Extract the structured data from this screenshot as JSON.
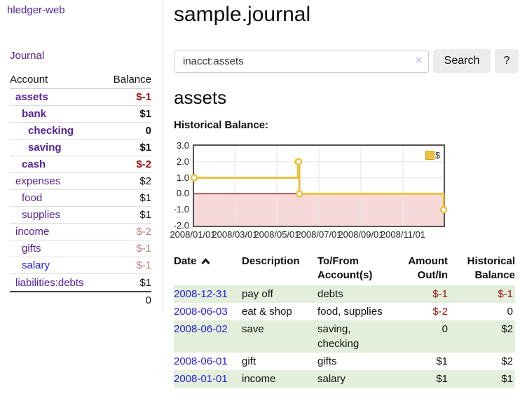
{
  "colors": {
    "purple": "#552299",
    "blue": "#2323dd",
    "darkred": "#971212",
    "rose": "#bd7b7b",
    "rowgreen": "#e3efda",
    "gold": "#edc240",
    "goldborder": "#c9a227",
    "pink": "#f8d9d9",
    "zeroline": "#9d1010",
    "chartborder": "#545454",
    "grid": "#e6e6e6",
    "btnbg": "#ececec"
  },
  "sidebar": {
    "app_title": "hledger-web",
    "nav": {
      "journal": "Journal"
    },
    "accounts_table": {
      "headers": {
        "account": "Account",
        "balance": "Balance"
      },
      "rows": [
        {
          "name": "assets",
          "depth": 1,
          "bold": true,
          "link": "purple",
          "balance": "$-1",
          "balance_style": "negative"
        },
        {
          "name": "bank",
          "depth": 2,
          "bold": true,
          "link": "purple",
          "balance": "$1",
          "balance_style": "normal"
        },
        {
          "name": "checking",
          "depth": 3,
          "bold": true,
          "link": "purple",
          "balance": "0",
          "balance_style": "normal"
        },
        {
          "name": "saving",
          "depth": 3,
          "bold": true,
          "link": "purple",
          "balance": "$1",
          "balance_style": "normal"
        },
        {
          "name": "cash",
          "depth": 2,
          "bold": true,
          "link": "purple",
          "balance": "$-2",
          "balance_style": "negative"
        },
        {
          "name": "expenses",
          "depth": 1,
          "bold": false,
          "link": "purple",
          "balance": "$2",
          "balance_style": "normal"
        },
        {
          "name": "food",
          "depth": 2,
          "bold": false,
          "link": "purple",
          "balance": "$1",
          "balance_style": "normal"
        },
        {
          "name": "supplies",
          "depth": 2,
          "bold": false,
          "link": "purple",
          "balance": "$1",
          "balance_style": "normal"
        },
        {
          "name": "income",
          "depth": 1,
          "bold": false,
          "link": "purple",
          "balance": "$-2",
          "balance_style": "negative_muted"
        },
        {
          "name": "gifts",
          "depth": 2,
          "bold": false,
          "link": "purple",
          "balance": "$-1",
          "balance_style": "negative_muted"
        },
        {
          "name": "salary",
          "depth": 2,
          "bold": false,
          "link": "blue",
          "balance": "$-1",
          "balance_style": "negative_muted"
        },
        {
          "name": "liabilities:debts",
          "depth": 1,
          "bold": false,
          "link": "purple",
          "balance": "$1",
          "balance_style": "normal"
        }
      ],
      "total": "0"
    }
  },
  "main": {
    "title": "sample.journal",
    "search": {
      "value": "inacct:assets",
      "clear_icon": "×",
      "search_button": "Search",
      "help_button": "?"
    },
    "account_heading": "assets",
    "chart_heading": "Historical Balance:"
  },
  "chart_data": {
    "type": "line",
    "step": true,
    "title": "Historical Balance:",
    "legend": "$",
    "legend_position": "top-right",
    "grid": true,
    "x_start": "2008-01-01",
    "x_end": "2008-12-31",
    "x_span_days": 365,
    "ylim": [
      -2,
      3
    ],
    "yticks": [
      "3.0",
      "2.0",
      "1.0",
      "0.0",
      "-1.0",
      "-2.0"
    ],
    "ytick_values": [
      3,
      2,
      1,
      0,
      -1,
      -2
    ],
    "xticks": [
      "2008/01/01",
      "2008/03/01",
      "2008/05/01",
      "2008/07/01",
      "2008/09/01",
      "2008/11/01"
    ],
    "series": [
      {
        "name": "$",
        "color": "#edc240",
        "points": [
          {
            "x": "2008-01-01",
            "y": 1
          },
          {
            "x": "2008-06-01",
            "y": 2
          },
          {
            "x": "2008-06-02",
            "y": 2
          },
          {
            "x": "2008-06-03",
            "y": 0
          },
          {
            "x": "2008-12-31",
            "y": -1
          }
        ]
      }
    ],
    "negative_region": {
      "from": 0,
      "to": -2,
      "fill": "#f8d9d9",
      "zero_line_color": "#9d1010"
    }
  },
  "register": {
    "headers": {
      "date": "Date",
      "description": "Description",
      "accounts": "To/From\nAccount(s)",
      "amount": "Amount\nOut/In",
      "balance": "Historical\nBalance"
    },
    "sort": "date-ascending-indicator",
    "rows": [
      {
        "date": "2008-12-31",
        "description": "pay off",
        "accounts": "debts",
        "amount": "$-1",
        "amount_style": "negative",
        "balance": "$-1",
        "balance_style": "negative",
        "shaded": true
      },
      {
        "date": "2008-06-03",
        "description": "eat & shop",
        "accounts": "food, supplies",
        "amount": "$-2",
        "amount_style": "negative",
        "balance": "0",
        "balance_style": "normal",
        "shaded": false
      },
      {
        "date": "2008-06-02",
        "description": "save",
        "accounts": "saving, checking",
        "amount": "0",
        "amount_style": "normal",
        "balance": "$2",
        "balance_style": "normal",
        "shaded": true
      },
      {
        "date": "2008-06-01",
        "description": "gift",
        "accounts": "gifts",
        "amount": "$1",
        "amount_style": "normal",
        "balance": "$2",
        "balance_style": "normal",
        "shaded": false
      },
      {
        "date": "2008-01-01",
        "description": "income",
        "accounts": "salary",
        "amount": "$1",
        "amount_style": "normal",
        "balance": "$1",
        "balance_style": "normal",
        "shaded": true
      }
    ]
  }
}
